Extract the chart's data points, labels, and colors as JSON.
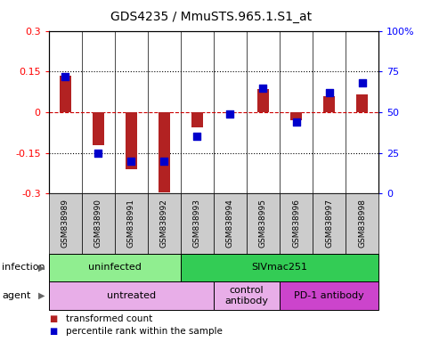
{
  "title": "GDS4235 / MmuSTS.965.1.S1_at",
  "samples": [
    "GSM838989",
    "GSM838990",
    "GSM838991",
    "GSM838992",
    "GSM838993",
    "GSM838994",
    "GSM838995",
    "GSM838996",
    "GSM838997",
    "GSM838998"
  ],
  "transformed_count": [
    0.135,
    -0.12,
    -0.21,
    -0.295,
    -0.055,
    -0.005,
    0.085,
    -0.03,
    0.06,
    0.065
  ],
  "percentile_rank": [
    72,
    25,
    20,
    20,
    35,
    49,
    65,
    44,
    62,
    68
  ],
  "ylim_left": [
    -0.3,
    0.3
  ],
  "ylim_right": [
    0,
    100
  ],
  "yticks_left": [
    -0.3,
    -0.15,
    0,
    0.15,
    0.3
  ],
  "yticks_right": [
    0,
    25,
    50,
    75,
    100
  ],
  "bar_color": "#b22222",
  "dot_color": "#0000cc",
  "hline_color": "#cc0000",
  "dotted_color": "#000000",
  "infection_groups": [
    {
      "label": "uninfected",
      "start": 0,
      "end": 3,
      "color": "#90ee90"
    },
    {
      "label": "SIVmac251",
      "start": 4,
      "end": 9,
      "color": "#33cc55"
    }
  ],
  "agent_groups": [
    {
      "label": "untreated",
      "start": 0,
      "end": 4,
      "color": "#e8aee8"
    },
    {
      "label": "control\nantibody",
      "start": 5,
      "end": 6,
      "color": "#e8aee8"
    },
    {
      "label": "PD-1 antibody",
      "start": 7,
      "end": 9,
      "color": "#cc44cc"
    }
  ],
  "legend_items": [
    {
      "label": "transformed count",
      "color": "#b22222"
    },
    {
      "label": "percentile rank within the sample",
      "color": "#0000cc"
    }
  ],
  "bar_width": 0.35,
  "dot_size": 40,
  "sample_box_color": "#cccccc",
  "fig_width": 4.75,
  "fig_height": 3.84
}
